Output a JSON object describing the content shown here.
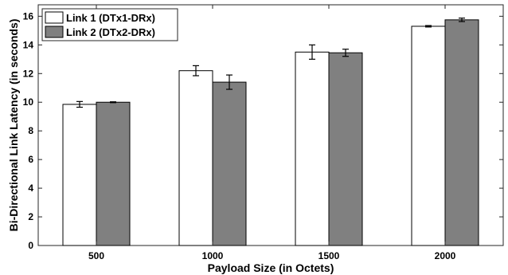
{
  "chart_data": {
    "type": "bar",
    "title": "",
    "xlabel": "Payload Size (in Octets)",
    "ylabel": "Bi-Directional Link Latency (in seconds)",
    "categories": [
      "500",
      "1000",
      "1500",
      "2000"
    ],
    "ylim": [
      0,
      16.8
    ],
    "yticks": [
      0,
      2,
      4,
      6,
      8,
      10,
      12,
      14,
      16
    ],
    "grid": false,
    "legend_position": "top-left",
    "series": [
      {
        "name": "Link 1 (DTx1-DRx)",
        "color": "#ffffff",
        "values": [
          9.85,
          12.2,
          13.5,
          15.3
        ],
        "errors": [
          0.2,
          0.35,
          0.5,
          0.05
        ]
      },
      {
        "name": "Link 2 (DTx2-DRx)",
        "color": "#808080",
        "values": [
          10.0,
          11.4,
          13.45,
          15.75
        ],
        "errors": [
          0.03,
          0.5,
          0.25,
          0.12
        ]
      }
    ]
  }
}
